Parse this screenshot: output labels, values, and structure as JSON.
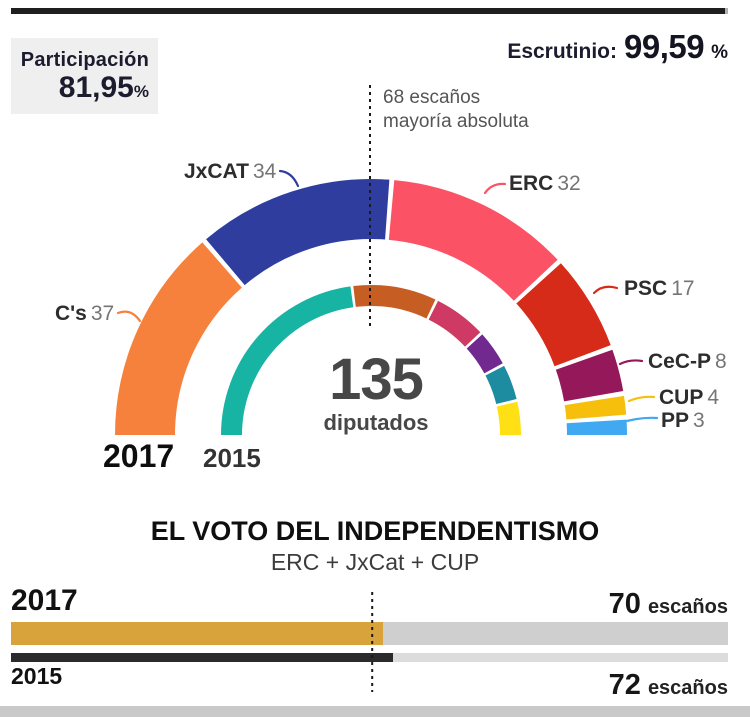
{
  "header": {
    "participation": {
      "label": "Participación",
      "value": "81,95",
      "unit": "%"
    },
    "scrutiny": {
      "label": "Escrutinio:",
      "value": "99,59",
      "unit": "%",
      "pct": 99.59,
      "bar_color": "#1f1f1f",
      "bar_rest_color": "#b0b0b0"
    }
  },
  "hemicycle": {
    "majority_line1": "68 escaños",
    "majority_line2": "mayoría absoluta",
    "total": "135",
    "total_unit": "diputados",
    "outer_year": "2017",
    "inner_year": "2015"
  },
  "chart_data": [
    {
      "type": "donut",
      "variant": "hemicycle-half",
      "total_seats": 135,
      "majority_seats": 68,
      "rings": [
        {
          "year": "2017",
          "position": "outer",
          "series": [
            {
              "label": "C's",
              "value": 37,
              "color": "#F6813D"
            },
            {
              "label": "JxCAT",
              "value": 34,
              "color": "#2F3D9E"
            },
            {
              "label": "ERC",
              "value": 32,
              "color": "#FB5266"
            },
            {
              "label": "PSC",
              "value": 17,
              "color": "#D62B18"
            },
            {
              "label": "CeC-P",
              "value": 8,
              "color": "#95195A"
            },
            {
              "label": "CUP",
              "value": 4,
              "color": "#F5BF0B"
            },
            {
              "label": "PP",
              "value": 3,
              "color": "#41A9F1"
            }
          ]
        },
        {
          "year": "2015",
          "position": "inner",
          "labels_visible": false,
          "series": [
            {
              "label": "",
              "value": 62,
              "color": "#17B3A3"
            },
            {
              "label": "",
              "value": 25,
              "color": "#C65D23"
            },
            {
              "label": "",
              "value": 16,
              "color": "#CE3A64"
            },
            {
              "label": "",
              "value": 11,
              "color": "#71288F"
            },
            {
              "label": "",
              "value": 11,
              "color": "#1E8CA0"
            },
            {
              "label": "",
              "value": 10,
              "color": "#FFE014"
            }
          ]
        }
      ]
    },
    {
      "type": "bar",
      "title": "EL VOTO DEL INDEPENDENTISMO",
      "subtitle": "ERC + JxCat + CUP",
      "categories": [
        "2017",
        "2015"
      ],
      "values": [
        70,
        72
      ],
      "value_labels": [
        "70",
        "72"
      ],
      "unit": "escaños",
      "xlim": [
        0,
        135
      ],
      "majority_line": 68,
      "bar_colors": [
        "#D8A33B",
        "#2B2B2B"
      ],
      "track_colors": [
        "#CFCFCF",
        "#DCDCDC"
      ],
      "legend_position": "none",
      "grid": false
    }
  ]
}
